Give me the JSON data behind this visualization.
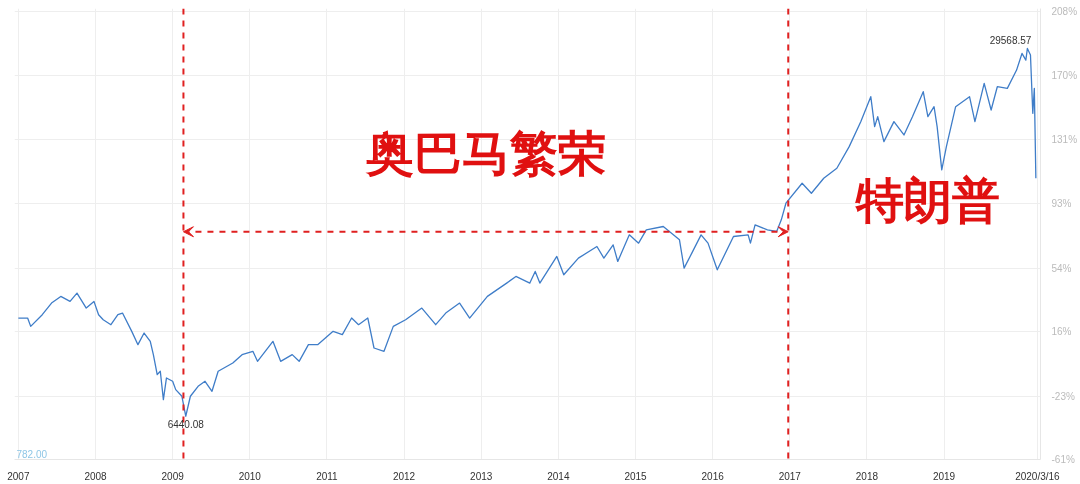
{
  "chart_data": {
    "type": "line",
    "x": [
      2007.0,
      2007.12,
      2007.16,
      2007.31,
      2007.43,
      2007.55,
      2007.67,
      2007.76,
      2007.88,
      2007.98,
      2008.04,
      2008.1,
      2008.2,
      2008.29,
      2008.35,
      2008.47,
      2008.55,
      2008.63,
      2008.71,
      2008.75,
      2008.8,
      2008.84,
      2008.88,
      2008.92,
      2009.0,
      2009.04,
      2009.12,
      2009.17,
      2009.23,
      2009.33,
      2009.42,
      2009.51,
      2009.59,
      2009.78,
      2009.9,
      2010.04,
      2010.1,
      2010.3,
      2010.4,
      2010.55,
      2010.64,
      2010.76,
      2010.88,
      2011.08,
      2011.2,
      2011.32,
      2011.41,
      2011.53,
      2011.61,
      2011.74,
      2011.86,
      2012.02,
      2012.23,
      2012.41,
      2012.54,
      2012.72,
      2012.85,
      2013.08,
      2013.33,
      2013.45,
      2013.63,
      2013.7,
      2013.76,
      2013.98,
      2014.07,
      2014.26,
      2014.5,
      2014.59,
      2014.71,
      2014.77,
      2014.92,
      2015.04,
      2015.14,
      2015.36,
      2015.57,
      2015.63,
      2015.73,
      2015.85,
      2015.94,
      2016.06,
      2016.27,
      2016.46,
      2016.49,
      2016.55,
      2016.71,
      2016.83,
      2016.89,
      2016.95,
      2017.16,
      2017.28,
      2017.44,
      2017.61,
      2017.77,
      2017.92,
      2018.05,
      2018.1,
      2018.14,
      2018.22,
      2018.35,
      2018.48,
      2018.59,
      2018.73,
      2018.79,
      2018.87,
      2018.91,
      2018.97,
      2019.03,
      2019.15,
      2019.33,
      2019.4,
      2019.52,
      2019.61,
      2019.69,
      2019.82,
      2019.94,
      2020.01,
      2020.06,
      2020.08,
      2020.12,
      2020.15,
      2020.17,
      2020.19
    ],
    "series": [
      {
        "color": "#3f7dc8",
        "values": [
          24,
          24,
          19,
          26,
          33,
          37,
          34,
          39,
          30,
          34,
          26,
          23,
          20,
          26,
          27,
          16,
          8,
          15,
          10,
          2,
          -10,
          -8,
          -25,
          -12,
          -14,
          -19,
          -23,
          -35,
          -23,
          -17,
          -14,
          -20,
          -8,
          -3,
          2,
          4,
          -2,
          10,
          -2,
          2,
          -2,
          8,
          8,
          16,
          14,
          24,
          20,
          24,
          6,
          4,
          19,
          23,
          30,
          20,
          27,
          33,
          24,
          37,
          45,
          49,
          45,
          52,
          45,
          61,
          50,
          60,
          67,
          60,
          68,
          58,
          74,
          69,
          77,
          79,
          71,
          54,
          63,
          74,
          69,
          53,
          73,
          74,
          69,
          80,
          77,
          76,
          83,
          93,
          105,
          99,
          108,
          114,
          127,
          142,
          157,
          139,
          145,
          130,
          142,
          134,
          145,
          160,
          145,
          151,
          139,
          113,
          127,
          151,
          157,
          142,
          165,
          149,
          163,
          162,
          173,
          183,
          179,
          186,
          182,
          147,
          162,
          108
        ]
      }
    ],
    "xlim": [
      2006.95,
      2020.25
    ],
    "xticks": [
      2007,
      2008,
      2009,
      2010,
      2011,
      2012,
      2013,
      2014,
      2015,
      2016,
      2017,
      2018,
      2019,
      {
        "value": 2020.21,
        "label": "2020/3/16"
      }
    ],
    "ylim": [
      -61,
      210
    ],
    "yticks": [
      {
        "value": -61,
        "label": "-61%"
      },
      {
        "value": -23,
        "label": "-23%"
      },
      {
        "value": 16,
        "label": "16%"
      },
      {
        "value": 54,
        "label": "54%"
      },
      {
        "value": 93,
        "label": "93%"
      },
      {
        "value": 131,
        "label": "131%"
      },
      {
        "value": 170,
        "label": "170%"
      },
      {
        "value": 208,
        "label": "208%"
      }
    ],
    "grid": true,
    "ref_lines": [
      {
        "axis": "x",
        "value": 2009.14,
        "color": "#e02020",
        "line_style": "dashed"
      },
      {
        "axis": "x",
        "value": 2016.98,
        "color": "#e02020",
        "line_style": "dashed"
      }
    ],
    "annotations": [
      {
        "text": "6440.08",
        "x": 2009.17,
        "y": -35
      },
      {
        "text": "29568.57",
        "x": 2020.08,
        "y": 186
      },
      "奥巴马繁荣",
      "特朗普",
      "782.00"
    ]
  }
}
